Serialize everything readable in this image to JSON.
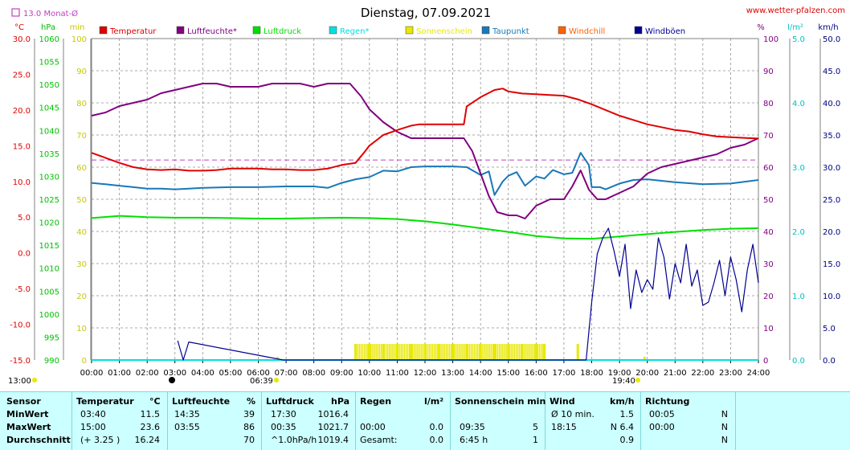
{
  "title": "Dienstag, 07.09.2021",
  "source": "www.wetter-pfalzen.com",
  "monthly_avg_label": "13.0 Monat-Ø",
  "units": {
    "temp": "°C",
    "pressure": "hPa",
    "sun": "min",
    "percent": "%",
    "rain": "l/m²",
    "wind": "km/h"
  },
  "colors": {
    "temperature": "#e00000",
    "humidity": "#800080",
    "pressure": "#00e000",
    "rain": "#00e0e0",
    "sunshine": "#e8e800",
    "dewpoint": "#1878b8",
    "windchill": "#ff6000",
    "gusts": "#000090",
    "monthly_avg": "#c040c0"
  },
  "legend": [
    {
      "label": "Temperatur",
      "color": "#e00000"
    },
    {
      "label": "Luftfeuchte*",
      "color": "#800080"
    },
    {
      "label": "Luftdruck",
      "color": "#00e000"
    },
    {
      "label": "Regen*",
      "color": "#00e0e0"
    },
    {
      "label": "Sonnenschein",
      "color": "#e8e800"
    },
    {
      "label": "Taupunkt",
      "color": "#1878b8"
    },
    {
      "label": "Windchill",
      "color": "#ff6000"
    },
    {
      "label": "Windböen",
      "color": "#000090"
    }
  ],
  "axes": {
    "temp_ticks": [
      "30.0",
      "25.0",
      "20.0",
      "15.0",
      "10.0",
      "5.0",
      "0.0",
      "-5.0",
      "-10.0",
      "-15.0"
    ],
    "hpa_ticks": [
      "1060",
      "1055",
      "1050",
      "1045",
      "1040",
      "1035",
      "1030",
      "1025",
      "1020",
      "1015",
      "1010",
      "1005",
      "1000",
      "995",
      "990"
    ],
    "min_ticks": [
      "100",
      "90",
      "80",
      "70",
      "60",
      "50",
      "40",
      "30",
      "20",
      "10",
      "0"
    ],
    "pct_ticks": [
      "100",
      "90",
      "80",
      "70",
      "60",
      "50",
      "40",
      "30",
      "20",
      "10",
      "0"
    ],
    "rain_ticks": [
      "5.0",
      "4.0",
      "3.0",
      "2.0",
      "1.0",
      "0.0"
    ],
    "wind_ticks": [
      "50.0",
      "45.0",
      "40.0",
      "35.0",
      "30.0",
      "25.0",
      "20.0",
      "15.0",
      "10.0",
      "5.0",
      "0.0"
    ],
    "x_ticks": [
      "00:00",
      "01:00",
      "02:00",
      "03:00",
      "04:00",
      "05:00",
      "06:00",
      "07:00",
      "08:00",
      "09:00",
      "10:00",
      "11:00",
      "12:00",
      "13:00",
      "14:00",
      "15:00",
      "16:00",
      "17:00",
      "18:00",
      "19:00",
      "20:00",
      "21:00",
      "22:00",
      "23:00",
      "24:00"
    ]
  },
  "astro": {
    "moon_time": "13:00",
    "sunrise": "06:39",
    "sunset": "19:40"
  },
  "chart_data": {
    "type": "line",
    "title": "Dienstag, 07.09.2021",
    "x_unit": "hour",
    "xlim": [
      0,
      24
    ],
    "monthly_avg_temp": 13.0,
    "series": [
      {
        "name": "Temperatur",
        "axis": "°C",
        "ylim": [
          -15,
          30
        ],
        "x": [
          0,
          0.5,
          1,
          1.5,
          2,
          2.5,
          3,
          3.5,
          4,
          4.5,
          5,
          5.5,
          6,
          6.5,
          7,
          7.5,
          8,
          8.5,
          9,
          9.5,
          9.8,
          10,
          10.5,
          11,
          11.5,
          11.8,
          12,
          12.5,
          13,
          13.4,
          13.5,
          14,
          14.5,
          14.8,
          15,
          15.5,
          16,
          16.5,
          17,
          17.5,
          18,
          18.5,
          19,
          19.5,
          20,
          20.5,
          21,
          21.5,
          22,
          22.5,
          23,
          23.5,
          24
        ],
        "y": [
          14.0,
          13.3,
          12.6,
          12.0,
          11.7,
          11.6,
          11.7,
          11.5,
          11.5,
          11.6,
          11.8,
          11.8,
          11.8,
          11.7,
          11.7,
          11.6,
          11.6,
          11.8,
          12.3,
          12.6,
          14.0,
          15.0,
          16.5,
          17.2,
          17.8,
          18.0,
          18.0,
          18.0,
          18.0,
          18.0,
          20.5,
          21.8,
          22.8,
          23.0,
          22.6,
          22.3,
          22.2,
          22.1,
          22.0,
          21.5,
          20.8,
          20.0,
          19.2,
          18.6,
          18.0,
          17.6,
          17.2,
          17.0,
          16.6,
          16.3,
          16.2,
          16.1,
          16.0
        ]
      },
      {
        "name": "Luftfeuchte*",
        "axis": "%",
        "ylim": [
          0,
          100
        ],
        "x": [
          0,
          0.5,
          1,
          1.5,
          2,
          2.5,
          3,
          3.5,
          4,
          4.5,
          5,
          5.5,
          6,
          6.5,
          7,
          7.5,
          8,
          8.5,
          9,
          9.3,
          9.7,
          10,
          10.5,
          11,
          11.5,
          12,
          12.5,
          13,
          13.4,
          13.7,
          14,
          14.3,
          14.6,
          15,
          15.3,
          15.6,
          16,
          16.5,
          17,
          17.3,
          17.6,
          17.9,
          18.2,
          18.5,
          19,
          19.5,
          20,
          20.5,
          21,
          21.5,
          22,
          22.5,
          23,
          23.5,
          24
        ],
        "y": [
          76,
          77,
          79,
          80,
          81,
          83,
          84,
          85,
          86,
          86,
          85,
          85,
          85,
          86,
          86,
          86,
          85,
          86,
          86,
          86,
          82,
          78,
          74,
          71,
          69,
          69,
          69,
          69,
          69,
          65,
          58,
          51,
          46,
          45,
          45,
          44,
          48,
          50,
          50,
          54,
          59,
          53,
          50,
          50,
          52,
          54,
          58,
          60,
          61,
          62,
          63,
          64,
          66,
          67,
          69
        ]
      },
      {
        "name": "Luftdruck",
        "axis": "hPa",
        "ylim": [
          990,
          1060
        ],
        "x": [
          0,
          1,
          2,
          3,
          4,
          5,
          6,
          7,
          8,
          9,
          10,
          11,
          12,
          13,
          14,
          15,
          16,
          17,
          18,
          19,
          20,
          21,
          22,
          23,
          24
        ],
        "y": [
          1020.9,
          1021.4,
          1021.1,
          1021.0,
          1021.0,
          1020.9,
          1020.8,
          1020.8,
          1020.9,
          1021.0,
          1020.9,
          1020.7,
          1020.2,
          1019.5,
          1018.7,
          1017.9,
          1017.0,
          1016.5,
          1016.4,
          1016.9,
          1017.4,
          1017.9,
          1018.3,
          1018.6,
          1018.7
        ]
      },
      {
        "name": "Regen*",
        "axis": "l/m²",
        "ylim": [
          0,
          5
        ],
        "x": [
          0,
          24
        ],
        "y": [
          0.0,
          0.0
        ]
      },
      {
        "name": "Taupunkt",
        "axis": "°C",
        "ylim": [
          -15,
          30
        ],
        "x": [
          0,
          0.5,
          1,
          1.5,
          2,
          2.5,
          3,
          3.5,
          4,
          5,
          6,
          7,
          8,
          8.5,
          9,
          9.5,
          10,
          10.5,
          11,
          11.5,
          12,
          12.5,
          13,
          13.5,
          14,
          14.3,
          14.5,
          14.8,
          15,
          15.3,
          15.6,
          16,
          16.3,
          16.6,
          17,
          17.3,
          17.6,
          17.9,
          18,
          18.3,
          18.5,
          19,
          19.5,
          20,
          21,
          22,
          23,
          24
        ],
        "y": [
          9.8,
          9.6,
          9.4,
          9.2,
          9.0,
          9.0,
          8.9,
          9.0,
          9.1,
          9.2,
          9.2,
          9.3,
          9.3,
          9.1,
          9.8,
          10.3,
          10.6,
          11.5,
          11.4,
          12.0,
          12.1,
          12.1,
          12.1,
          12.0,
          10.9,
          11.4,
          8.1,
          10.0,
          10.8,
          11.3,
          9.4,
          10.7,
          10.4,
          11.6,
          11.0,
          11.2,
          14.0,
          12.3,
          9.2,
          9.2,
          8.9,
          9.7,
          10.2,
          10.3,
          9.9,
          9.6,
          9.7,
          10.2
        ]
      },
      {
        "name": "Windböen",
        "axis": "km/h",
        "ylim": [
          0,
          50
        ],
        "x": [
          3.1,
          3.3,
          3.5,
          6.9,
          17.8,
          18.0,
          18.2,
          18.4,
          18.6,
          18.8,
          19.0,
          19.2,
          19.4,
          19.6,
          19.8,
          20.0,
          20.2,
          20.4,
          20.6,
          20.8,
          21.0,
          21.2,
          21.4,
          21.6,
          21.8,
          22.0,
          22.2,
          22.4,
          22.6,
          22.8,
          23.0,
          23.2,
          23.4,
          23.6,
          23.8,
          24.0
        ],
        "y": [
          3.0,
          0.0,
          2.8,
          0.0,
          0.0,
          9.0,
          16.5,
          19.0,
          20.5,
          17.0,
          13.0,
          18.0,
          8.0,
          14.0,
          10.5,
          12.5,
          11.0,
          19.0,
          16.0,
          9.5,
          15.0,
          12.0,
          18.0,
          11.5,
          14.0,
          8.5,
          9.0,
          12.0,
          15.5,
          10.0,
          16.0,
          12.5,
          7.5,
          14.0,
          18.0,
          12.0
        ]
      },
      {
        "name": "Sonnenschein",
        "axis": "min",
        "ylim": [
          0,
          100
        ],
        "x": [
          6.7,
          9.5,
          10,
          10.5,
          11,
          11.5,
          12,
          12.5,
          13,
          13.5,
          14,
          14.5,
          15,
          15.5,
          16.0,
          16.3,
          17.5,
          19.9
        ],
        "y": [
          1,
          5,
          5,
          5,
          5,
          5,
          5,
          5,
          5,
          5,
          5,
          5,
          5,
          5,
          5,
          5,
          5,
          1
        ]
      }
    ]
  },
  "table": {
    "headers": {
      "sensor": "Sensor",
      "temp": "Temperatur",
      "temp_unit": "°C",
      "hum": "Luftfeuchte",
      "hum_unit": "%",
      "press": "Luftdruck",
      "press_unit": "hPa",
      "rain": "Regen",
      "rain_unit": "l/m²",
      "sun": "Sonnenschein min",
      "wind": "Wind",
      "wind_unit": "km/h",
      "dir": "Richtung"
    },
    "rows": [
      {
        "label": "MinWert",
        "temp_time": "03:40",
        "temp_val": "11.5",
        "hum_time": "14:35",
        "hum_val": "39",
        "press_time": "17:30",
        "press_val": "1016.4",
        "rain_time": "",
        "rain_val": "",
        "sun_time": "",
        "sun_val": "",
        "wind_time": "Ø 10 min.",
        "wind_val": "1.5",
        "dir_time": "00:05",
        "dir_val": "N"
      },
      {
        "label": "MaxWert",
        "temp_time": "15:00",
        "temp_val": "23.6",
        "hum_time": "03:55",
        "hum_val": "86",
        "press_time": "00:35",
        "press_val": "1021.7",
        "rain_time": "00:00",
        "rain_val": "0.0",
        "sun_time": "09:35",
        "sun_val": "5",
        "wind_time": "18:15",
        "wind_val": "N 6.4",
        "dir_time": "00:00",
        "dir_val": "N"
      },
      {
        "label": "Durchschnitt",
        "temp_time": "(+ 3.25 )",
        "temp_val": "16.24",
        "hum_time": "",
        "hum_val": "70",
        "press_time": "^1.0hPa/h",
        "press_val": "1019.4",
        "rain_time": "Gesamt:",
        "rain_val": "0.0",
        "sun_time": "6:45 h",
        "sun_val": "1",
        "wind_time": "",
        "wind_val": "0.9",
        "dir_time": "",
        "dir_val": "N"
      }
    ]
  }
}
